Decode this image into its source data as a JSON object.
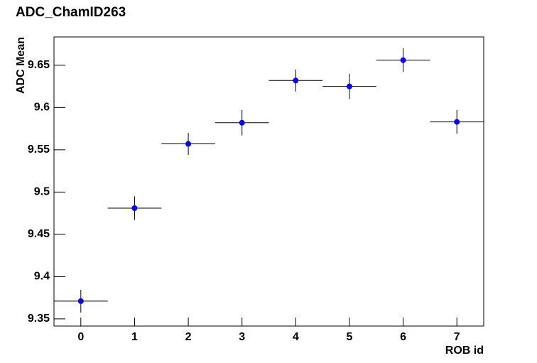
{
  "chart_data": {
    "type": "errorbar",
    "title": "ADC_ChamID263",
    "x_label": "ROB id",
    "y_label": "ADC Mean",
    "x": [
      0,
      1,
      2,
      3,
      4,
      5,
      6,
      7
    ],
    "values": [
      9.371,
      9.481,
      9.557,
      9.582,
      9.632,
      9.625,
      9.656,
      9.583
    ],
    "yerr": [
      0.0135,
      0.014,
      0.013,
      0.015,
      0.013,
      0.015,
      0.014,
      0.014
    ],
    "xerr": [
      0.5,
      0.5,
      0.5,
      0.5,
      0.5,
      0.5,
      0.5,
      0.5
    ],
    "color": "#0000ff",
    "xlim": [
      -0.5,
      7.5
    ],
    "xticks": [
      0,
      1,
      2,
      3,
      4,
      5,
      6,
      7
    ],
    "ylim": [
      9.3415,
      9.6835
    ],
    "yticks": [
      9.35,
      9.4,
      9.45,
      9.5,
      9.55,
      9.6,
      9.65
    ],
    "grid": false
  }
}
